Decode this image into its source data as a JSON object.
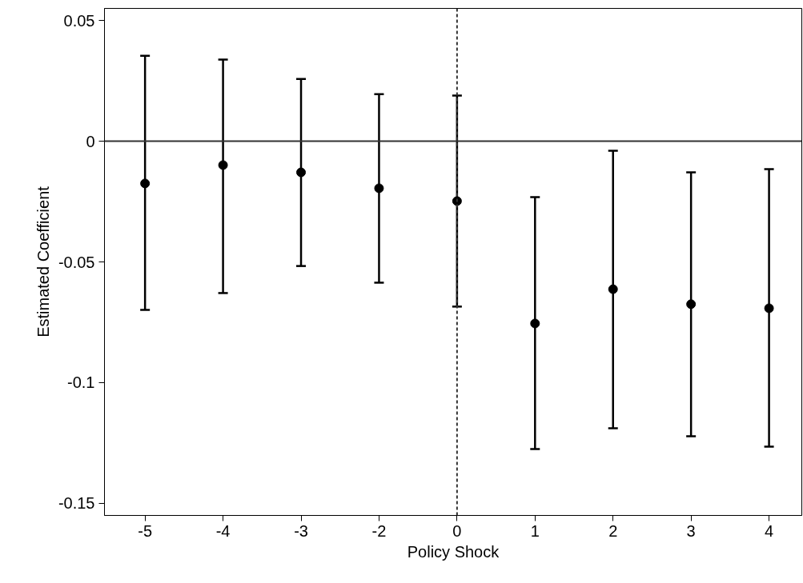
{
  "chart_data": {
    "type": "scatter",
    "xlabel": "Policy Shock",
    "ylabel": "Estimated Coefficient",
    "categories": [
      "-5",
      "-4",
      "-3",
      "-2",
      "0",
      "1",
      "2",
      "3",
      "4"
    ],
    "series": [
      {
        "color": "#000000",
        "values": [
          -0.0175,
          -0.0099,
          -0.0129,
          -0.0195,
          -0.0248,
          -0.0755,
          -0.0613,
          -0.0675,
          -0.0692
        ],
        "errors": [
          [
            -0.0699,
            0.0354
          ],
          [
            -0.0629,
            0.0338
          ],
          [
            -0.0517,
            0.0258
          ],
          [
            -0.0586,
            0.0195
          ],
          [
            -0.0685,
            0.0189
          ],
          [
            -0.1275,
            -0.0232
          ],
          [
            -0.1189,
            -0.004
          ],
          [
            -0.1222,
            -0.0129
          ],
          [
            -0.1265,
            -0.0116
          ]
        ]
      }
    ],
    "ylim": [
      -0.155,
      0.055
    ],
    "yticks": [
      {
        "value": -0.15,
        "label": "-0.15"
      },
      {
        "value": -0.1,
        "label": "-0.1"
      },
      {
        "value": -0.05,
        "label": "-0.05"
      },
      {
        "value": 0,
        "label": "0"
      },
      {
        "value": 0.05,
        "label": "0.05"
      }
    ],
    "ref_lines": [
      {
        "axis": "y",
        "value": 0,
        "color": "#333333",
        "line_style": "solid"
      },
      {
        "axis": "x",
        "value": "0",
        "color": "#333333",
        "line_style": "dashed"
      }
    ],
    "grid": false,
    "marker": "circle"
  }
}
